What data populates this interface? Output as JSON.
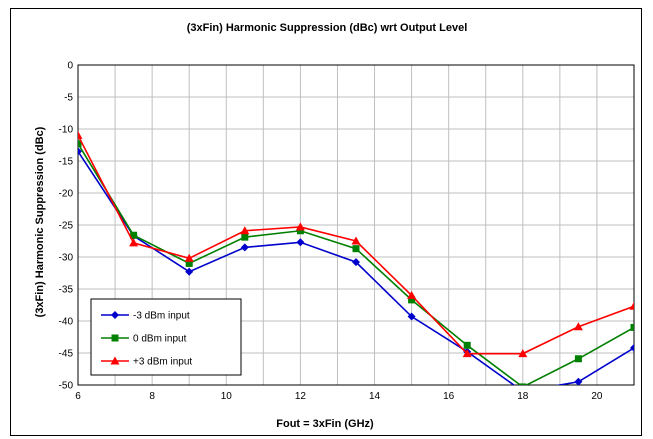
{
  "chart_data": {
    "type": "line",
    "title": "(3xFin) Harmonic Suppression (dBc) wrt Output Level",
    "xlabel": "Fout = 3xFin (GHz)",
    "ylabel": "(3xFin) Harmonic Suppression (dBc)",
    "xlim": [
      6,
      21
    ],
    "ylim": [
      -50,
      0
    ],
    "xticks": [
      6,
      8,
      10,
      12,
      14,
      16,
      18,
      20
    ],
    "yticks": [
      0,
      -5,
      -10,
      -15,
      -20,
      -25,
      -30,
      -35,
      -40,
      -45,
      -50
    ],
    "grid": true,
    "legend_position": "bottom-left",
    "series": [
      {
        "name": "-3 dBm input",
        "color": "#0000cc",
        "marker": "diamond",
        "x": [
          6,
          7.5,
          9,
          10.5,
          12,
          13.5,
          15,
          16.5,
          18,
          19.5,
          21
        ],
        "y": [
          -13.5,
          -26.7,
          -32.3,
          -28.5,
          -27.7,
          -30.8,
          -39.3,
          -44.8,
          -51.0,
          -49.5,
          -44.2
        ]
      },
      {
        "name": "0 dBm input",
        "color": "#008000",
        "marker": "square",
        "x": [
          6,
          7.5,
          9,
          10.5,
          12,
          13.5,
          15,
          16.5,
          18,
          19.5,
          21
        ],
        "y": [
          -12.3,
          -26.6,
          -31.0,
          -26.9,
          -25.9,
          -28.7,
          -36.7,
          -43.8,
          -50.3,
          -45.9,
          -41.0
        ]
      },
      {
        "name": "+3 dBm input",
        "color": "#ff0000",
        "marker": "triangle",
        "x": [
          6,
          7.5,
          9,
          10.5,
          12,
          13.5,
          15,
          16.5,
          18,
          19.5,
          21
        ],
        "y": [
          -11.0,
          -27.8,
          -30.2,
          -25.9,
          -25.3,
          -27.5,
          -36.0,
          -45.1,
          -45.1,
          -40.9,
          -37.7
        ]
      }
    ]
  }
}
